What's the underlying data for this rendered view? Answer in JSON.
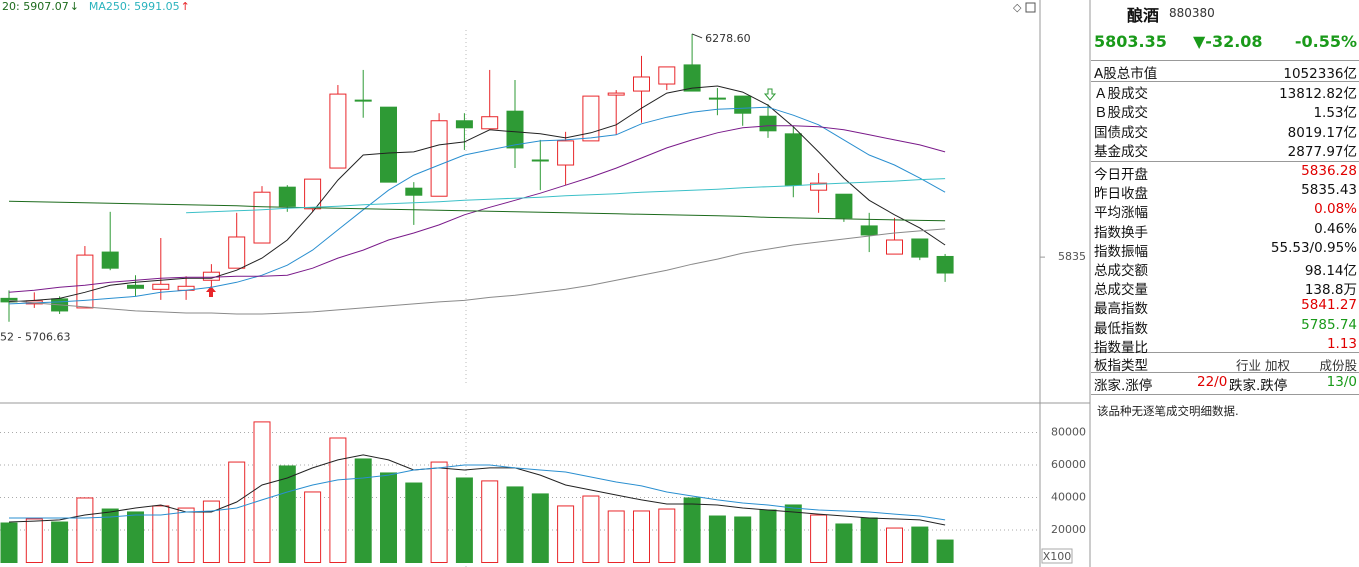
{
  "chart_data": [
    {
      "type": "candlestick",
      "open": [
        5753,
        5742,
        5752,
        5734,
        5845,
        5779,
        5771,
        5769,
        5789,
        5813,
        5863,
        5974,
        5931,
        6012,
        6147,
        6133,
        5972,
        5956,
        6106,
        6090,
        6125,
        6028,
        6018,
        6066,
        6157,
        6165,
        6179,
        6217,
        6151,
        6155,
        6115,
        6080,
        5968,
        5960,
        5897,
        5841,
        5871,
        5836.28
      ],
      "high": [
        5769,
        5765,
        5757,
        5857,
        5925,
        5799,
        5873,
        5797,
        5821,
        5923,
        5976,
        5978,
        5990,
        6177,
        6207,
        6133,
        5984,
        6121,
        6121,
        6207,
        6187,
        6068,
        6084,
        6155,
        6167,
        6235,
        6213,
        6278.6,
        6171,
        6155,
        6139,
        6094,
        6002,
        5960,
        5923,
        5913,
        5871,
        5841.27
      ],
      "low": [
        5706.63,
        5734,
        5722,
        5734,
        5809,
        5757,
        5750,
        5750,
        5769,
        5813,
        5863,
        5925,
        5925,
        6012,
        6112,
        5984,
        5899,
        5956,
        6048,
        6090,
        6012,
        5968,
        5978,
        6066,
        6078,
        6102,
        6167,
        6165,
        6117,
        6096,
        6072,
        5954,
        5923,
        5905,
        5845,
        5841,
        5829,
        5785.74
      ],
      "close": [
        5746,
        5748,
        5728,
        5839,
        5813,
        5773,
        5781,
        5777,
        5805,
        5875,
        5964,
        5936,
        5990,
        6159,
        6145,
        5984,
        5958,
        6106,
        6092,
        6114,
        6052,
        6026,
        6066,
        6155,
        6161,
        6193,
        6213,
        6165,
        6149,
        6121,
        6086,
        5978,
        5982,
        5913,
        5879,
        5869,
        5835,
        5803.35
      ],
      "up_color": "#e8262a",
      "down_color": "#2e9a35",
      "ylim": [
        5551,
        6346
      ],
      "yticks": [
        5835
      ],
      "high_label": "6278.60",
      "low_label": "52 - 5706.63",
      "legend": [
        {
          "text": "20: 5907.07",
          "color": "#1d6b1d",
          "arrow": "↓",
          "arrow_color": "#1d6b1d"
        },
        {
          "text": "MA250: 5991.05",
          "color": "#2bb3bd",
          "arrow": "↑",
          "arrow_color": "#e8262a"
        }
      ],
      "lines": [
        {
          "color": "#222222",
          "values": [
            5746,
            5749,
            5753,
            5765,
            5779,
            5785,
            5789,
            5793,
            5793,
            5809,
            5833,
            5869,
            5925,
            5988,
            6038,
            6042,
            6044,
            6058,
            6064,
            6088,
            6084,
            6080,
            6072,
            6082,
            6098,
            6131,
            6161,
            6171,
            6175,
            6163,
            6137,
            6094,
            6044,
            5992,
            5948,
            5919,
            5893,
            5859
          ]
        },
        {
          "color": "#2a8fd0",
          "values": [
            5742,
            5744,
            5746,
            5749,
            5753,
            5757,
            5765,
            5769,
            5775,
            5785,
            5799,
            5819,
            5849,
            5889,
            5929,
            5968,
            5998,
            6018,
            6038,
            6048,
            6058,
            6066,
            6068,
            6072,
            6078,
            6100,
            6113,
            6123,
            6129,
            6131,
            6133,
            6117,
            6098,
            6068,
            6038,
            6018,
            5992,
            5964
          ]
        },
        {
          "color": "#7a1a8a",
          "values": [
            5765,
            5769,
            5775,
            5779,
            5785,
            5789,
            5793,
            5795,
            5795,
            5797,
            5797,
            5799,
            5813,
            5833,
            5849,
            5869,
            5883,
            5899,
            5919,
            5934,
            5948,
            5962,
            5978,
            5994,
            6012,
            6032,
            6052,
            6068,
            6082,
            6092,
            6096,
            6096,
            6094,
            6088,
            6078,
            6068,
            6058,
            6044
          ]
        },
        {
          "color": "#8a8a8a",
          "values": [
            5749,
            5744,
            5740,
            5736,
            5732,
            5728,
            5726,
            5724,
            5724,
            5722,
            5722,
            5724,
            5726,
            5730,
            5734,
            5738,
            5742,
            5746,
            5749,
            5755,
            5759,
            5765,
            5771,
            5779,
            5789,
            5799,
            5809,
            5821,
            5831,
            5843,
            5851,
            5859,
            5865,
            5871,
            5877,
            5883,
            5887,
            5891
          ]
        },
        {
          "color": "#1d6b1d",
          "values": [
            5946,
            5945,
            5944,
            5943,
            5942,
            5941,
            5940,
            5939,
            5938,
            5937,
            5935,
            5934,
            5933,
            5932,
            5931,
            5930,
            5929,
            5928,
            5927,
            5926,
            5925,
            5924,
            5923,
            5922,
            5921,
            5920,
            5919,
            5918,
            5917,
            5916,
            5914,
            5913,
            5912,
            5911,
            5910,
            5909,
            5908,
            5907.07
          ]
        },
        {
          "color": "#3cc0c8",
          "values": [
            null,
            null,
            null,
            null,
            null,
            null,
            null,
            5923,
            5925,
            5927,
            5929,
            5932,
            5934,
            5936,
            5939,
            5941,
            5943,
            5945,
            5948,
            5950,
            5952,
            5954,
            5957,
            5959,
            5961,
            5964,
            5966,
            5968,
            5970,
            5973,
            5975,
            5977,
            5980,
            5982,
            5984,
            5986,
            5989,
            5991.05
          ]
        }
      ]
    },
    {
      "type": "bar",
      "values": [
        24300,
        26800,
        24900,
        39700,
        32900,
        31100,
        34800,
        33500,
        37800,
        61800,
        86500,
        59400,
        43400,
        76600,
        63700,
        55100,
        48900,
        61800,
        52000,
        50200,
        46500,
        42200,
        34800,
        40900,
        31700,
        31700,
        32900,
        39700,
        28600,
        28000,
        32300,
        35400,
        29200,
        23700,
        27400,
        21200,
        21800,
        13800
      ],
      "ylim": [
        0,
        96900
      ],
      "yticks": [
        20000,
        40000,
        60000,
        80000
      ],
      "unit_label": "X100",
      "grid": true,
      "lines": [
        {
          "color": "#222222",
          "values": [
            24900,
            25500,
            26200,
            29200,
            31100,
            33500,
            35400,
            31100,
            31100,
            37200,
            47700,
            52000,
            58200,
            63100,
            66200,
            63100,
            56900,
            58200,
            56900,
            58200,
            58200,
            53800,
            47700,
            44600,
            41500,
            38500,
            36000,
            36000,
            35400,
            33500,
            32300,
            31100,
            29800,
            28600,
            27400,
            26800,
            26200,
            23100
          ]
        },
        {
          "color": "#2a8fd0",
          "values": [
            27400,
            27400,
            27400,
            27400,
            28000,
            29200,
            29200,
            31100,
            31700,
            33500,
            38500,
            43400,
            47700,
            50800,
            52000,
            53800,
            56900,
            58200,
            60000,
            60000,
            58200,
            56900,
            55700,
            52600,
            49500,
            47100,
            43400,
            40900,
            38500,
            36600,
            35400,
            33500,
            32300,
            31700,
            31100,
            29800,
            28600,
            26200
          ]
        }
      ]
    }
  ],
  "quote_panel": {
    "name": "酿酒",
    "code": "880380",
    "price": "5803.35",
    "change": "▼-32.08",
    "change_pct": "-0.55%",
    "quote_color": "#1a9a1a",
    "market_rows": [
      {
        "label": "A股总市值",
        "value": "1052336亿"
      },
      {
        "label": "Ａ股成交",
        "value": "13812.82亿"
      },
      {
        "label": "Ｂ股成交",
        "value": "1.53亿"
      },
      {
        "label": "国债成交",
        "value": "8019.17亿"
      },
      {
        "label": "基金成交",
        "value": "2877.97亿"
      }
    ],
    "stat_rows": [
      {
        "label": "今日开盘",
        "value": "5836.28",
        "color": "#e00000"
      },
      {
        "label": "昨日收盘",
        "value": "5835.43"
      },
      {
        "label": "平均涨幅",
        "value": "0.08%",
        "color": "#e00000"
      },
      {
        "label": "指数换手",
        "value": "0.46%"
      },
      {
        "label": "指数振幅",
        "value": "55.53/0.95%"
      },
      {
        "label": "总成交额",
        "value": "98.14亿"
      },
      {
        "label": "总成交量",
        "value": "138.8万"
      },
      {
        "label": "最高指数",
        "value": "5841.27",
        "color": "#e00000"
      },
      {
        "label": "最低指数",
        "value": "5785.74",
        "color": "#1a9a1a"
      },
      {
        "label": "指数量比",
        "value": "1.13",
        "color": "#e00000"
      }
    ],
    "sector_type": {
      "label": "板指类型",
      "values": [
        "行业",
        "加权",
        "成份股"
      ]
    },
    "breadth": {
      "up_label": "涨家.涨停",
      "up": "22/0",
      "up_color": "#e00000",
      "down_label": "跌家.跌停",
      "down": "13/0",
      "down_color": "#1a9a1a"
    },
    "note": "该品种无逐笔成交明细数据."
  }
}
